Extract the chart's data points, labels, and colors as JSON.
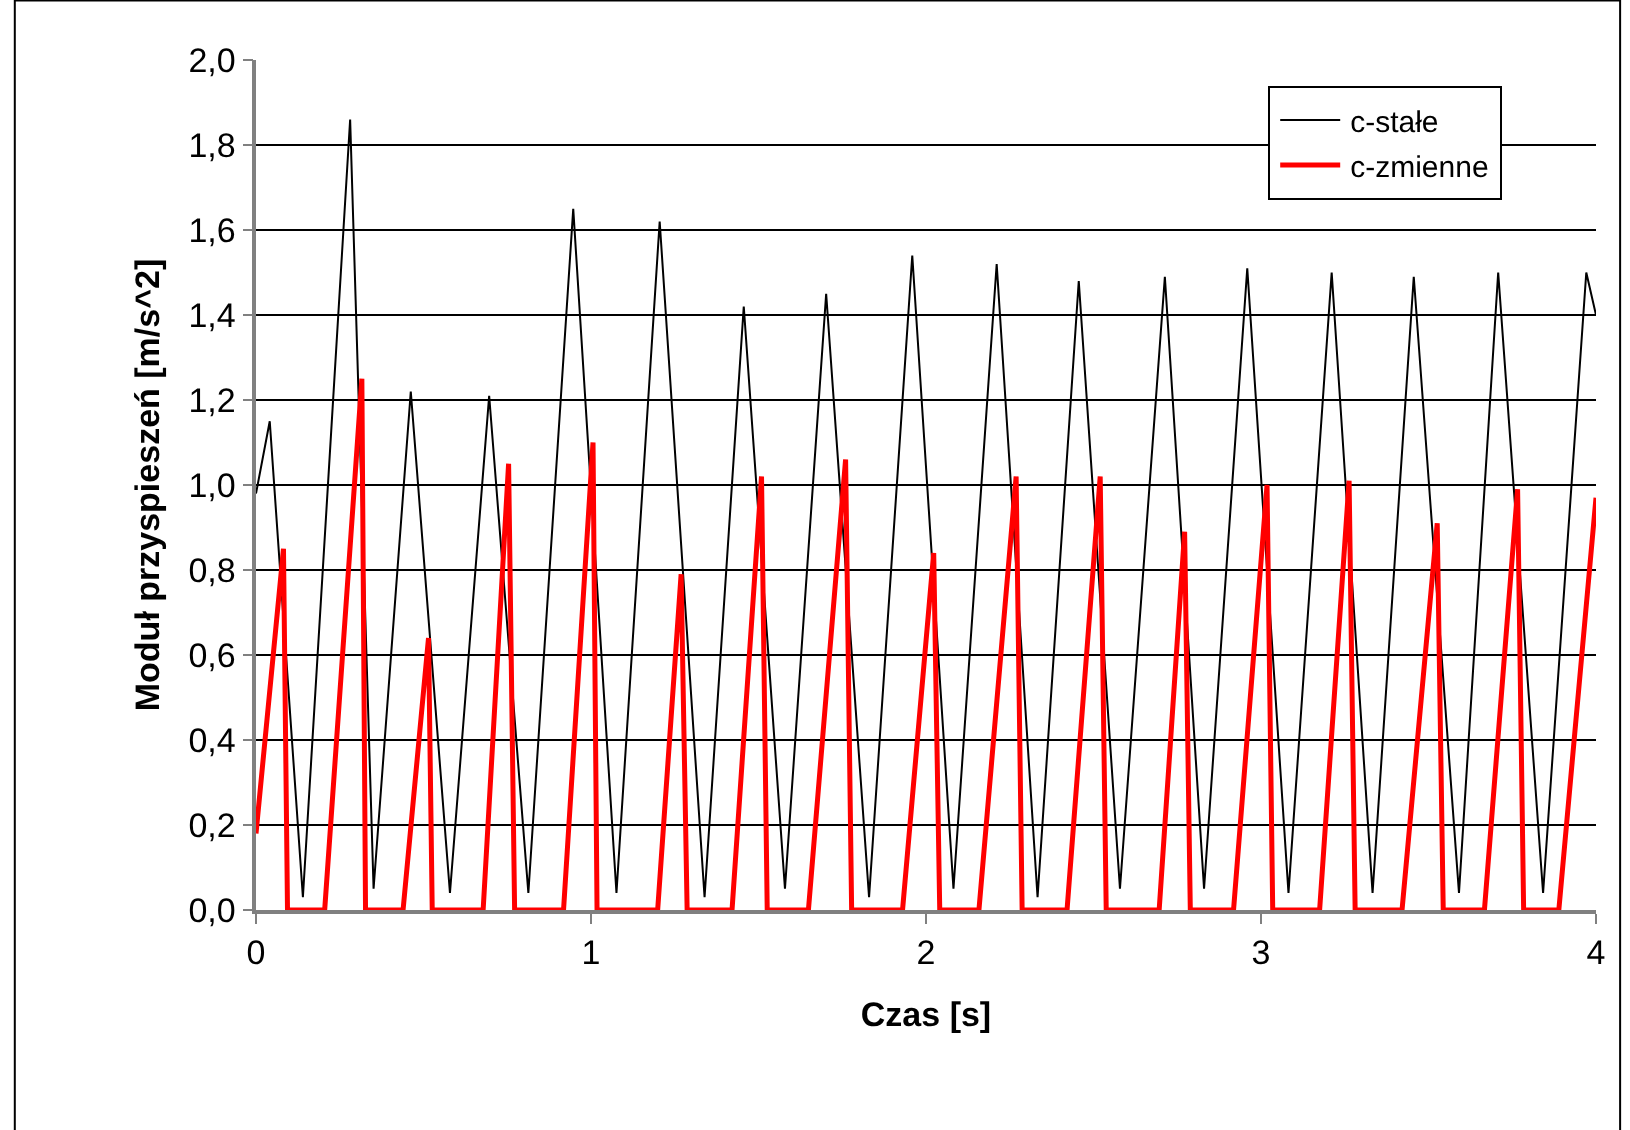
{
  "chart_data": {
    "type": "line",
    "xlabel": "Czas [s]",
    "ylabel": "Moduł przyspieszeń [m/s^2]",
    "xlim": [
      0,
      4
    ],
    "xticks": [
      0,
      1,
      2,
      3,
      4
    ],
    "ylim": [
      0,
      2
    ],
    "yticks": [
      {
        "value": 0,
        "label": "0,0"
      },
      {
        "value": 0.2,
        "label": "0,2"
      },
      {
        "value": 0.4,
        "label": "0,4"
      },
      {
        "value": 0.6,
        "label": "0,6"
      },
      {
        "value": 0.8,
        "label": "0,8"
      },
      {
        "value": 1.0,
        "label": "1,0"
      },
      {
        "value": 1.2,
        "label": "1,2"
      },
      {
        "value": 1.4,
        "label": "1,4"
      },
      {
        "value": 1.6,
        "label": "1,6"
      },
      {
        "value": 1.8,
        "label": "1,8"
      },
      {
        "value": 2.0,
        "label": "2,0"
      }
    ],
    "grid": "y",
    "legend": "top right",
    "marker": "none",
    "line_style": "solid",
    "series": [
      {
        "name": "c-stałe",
        "color": "#000000",
        "x": [
          0,
          0.041,
          0.14,
          0.281,
          0.351,
          0.462,
          0.579,
          0.696,
          0.813,
          0.947,
          1.076,
          1.205,
          1.339,
          1.456,
          1.579,
          1.702,
          1.83,
          1.959,
          2.082,
          2.211,
          2.333,
          2.456,
          2.579,
          2.713,
          2.83,
          2.959,
          3.082,
          3.211,
          3.333,
          3.456,
          3.591,
          3.708,
          3.842,
          3.971,
          4.0
        ],
        "values": [
          0.98,
          1.15,
          0.03,
          1.86,
          0.05,
          1.22,
          0.04,
          1.21,
          0.04,
          1.65,
          0.04,
          1.62,
          0.03,
          1.42,
          0.05,
          1.45,
          0.03,
          1.54,
          0.05,
          1.52,
          0.03,
          1.48,
          0.05,
          1.49,
          0.05,
          1.51,
          0.04,
          1.5,
          0.04,
          1.49,
          0.04,
          1.5,
          0.04,
          1.5,
          1.4
        ]
      },
      {
        "name": "c-zmienne",
        "color": "#ff0000",
        "x": [
          0,
          0.082,
          0.094,
          0.205,
          0.316,
          0.327,
          0.439,
          0.515,
          0.526,
          0.678,
          0.754,
          0.772,
          0.918,
          1.006,
          1.018,
          1.199,
          1.269,
          1.287,
          1.421,
          1.509,
          1.526,
          1.649,
          1.76,
          1.778,
          1.93,
          2.023,
          2.041,
          2.158,
          2.269,
          2.287,
          2.421,
          2.52,
          2.538,
          2.696,
          2.772,
          2.789,
          2.918,
          3.018,
          3.035,
          3.175,
          3.263,
          3.281,
          3.421,
          3.526,
          3.544,
          3.667,
          3.766,
          3.784,
          3.889,
          4.0
        ],
        "values": [
          0.18,
          0.85,
          0,
          0,
          1.25,
          0,
          0,
          0.64,
          0,
          0,
          1.05,
          0,
          0,
          1.1,
          0,
          0,
          0.79,
          0,
          0,
          1.02,
          0,
          0,
          1.06,
          0,
          0,
          0.84,
          0,
          0,
          1.02,
          0,
          0,
          1.02,
          0,
          0,
          0.89,
          0,
          0,
          1.0,
          0,
          0,
          1.01,
          0,
          0,
          0.91,
          0,
          0,
          0.99,
          0,
          0,
          0.97
        ]
      }
    ]
  }
}
